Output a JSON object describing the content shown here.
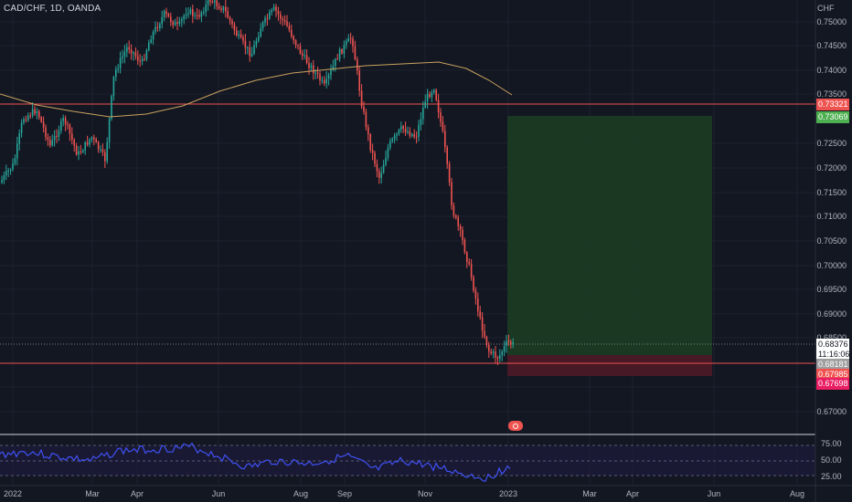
{
  "symbol_line": "CAD/CHF, 1D, OANDA",
  "currency": "CHF",
  "price_axis_labels": [
    "0.75000",
    "0.74500",
    "0.74000",
    "0.73500",
    "0.72500",
    "0.72000",
    "0.71500",
    "0.71000",
    "0.70500",
    "0.70000",
    "0.69500",
    "0.69000",
    "0.68500",
    "0.67500",
    "0.67000"
  ],
  "time_axis_labels": [
    "2022",
    "Mar",
    "Apr",
    "Jun",
    "Aug",
    "Sep",
    "Nov",
    "2023",
    "Mar",
    "Apr",
    "Jun",
    "Aug"
  ],
  "tags": {
    "resistance": {
      "text": "0.73321",
      "color": "#ef5350"
    },
    "target": {
      "text": "0.73069",
      "color": "#4caf50"
    },
    "current_price": {
      "text": "0.68376",
      "color": "#ffffff"
    },
    "countdown": {
      "text": "11:16:06",
      "color": "#ffffff"
    },
    "entry": {
      "text": "0.68181",
      "color": "#9e9e9e"
    },
    "support": {
      "text": "0.67985",
      "color": "#ef5350"
    },
    "stop": {
      "text": "0.67698",
      "color": "#e91e63"
    }
  },
  "rsi_levels": [
    "75.00",
    "50.00",
    "25.00"
  ],
  "colors": {
    "background": "#131722",
    "up": "#26a69a",
    "down": "#ef5350",
    "ma": "#c9a25f",
    "rsi": "#3f51f5",
    "profit_zone": "#1b3a24",
    "loss_zone": "#4a1827"
  },
  "icons": {
    "event_badge": "flag-icon"
  }
}
